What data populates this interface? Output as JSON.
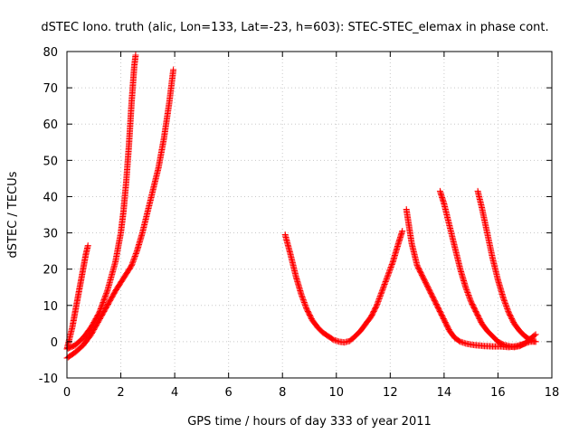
{
  "chart_data": {
    "type": "scatter",
    "title": "dSTEC Iono. truth (alic, Lon=133, Lat=-23, h=603): STEC-STEC_elemax in phase cont.",
    "xlabel": "GPS time / hours of day 333 of year 2011",
    "ylabel": "dSTEC  / TECUs",
    "xlim": [
      0,
      18
    ],
    "ylim": [
      -10,
      80
    ],
    "xticks": [
      0,
      2,
      4,
      6,
      8,
      10,
      12,
      14,
      16,
      18
    ],
    "yticks": [
      -10,
      0,
      10,
      20,
      30,
      40,
      50,
      60,
      70,
      80
    ],
    "xtick_labels": [
      "0",
      "2",
      "4",
      "6",
      "8",
      "10",
      "12",
      "14",
      "16",
      "18"
    ],
    "ytick_labels": [
      "-10",
      "0",
      "10",
      "20",
      "30",
      "40",
      "50",
      "60",
      "70",
      "80"
    ],
    "grid": true,
    "marker": "+",
    "marker_color": "#ff0000",
    "series": [
      {
        "points": [
          [
            0.0,
            -2
          ],
          [
            0.1,
            1
          ],
          [
            0.2,
            4
          ],
          [
            0.3,
            8
          ],
          [
            0.4,
            12
          ],
          [
            0.5,
            16
          ],
          [
            0.6,
            20
          ],
          [
            0.7,
            24
          ],
          [
            0.78,
            26.5
          ]
        ]
      },
      {
        "points": [
          [
            0.0,
            -2
          ],
          [
            0.3,
            -1
          ],
          [
            0.6,
            1
          ],
          [
            0.9,
            4
          ],
          [
            1.2,
            8
          ],
          [
            1.5,
            14
          ],
          [
            1.8,
            22
          ],
          [
            2.0,
            30
          ],
          [
            2.1,
            36
          ],
          [
            2.2,
            44
          ],
          [
            2.3,
            54
          ],
          [
            2.4,
            66
          ],
          [
            2.5,
            76
          ],
          [
            2.55,
            79
          ]
        ]
      },
      {
        "points": [
          [
            0.0,
            -4.5
          ],
          [
            0.3,
            -3
          ],
          [
            0.6,
            -1
          ],
          [
            0.9,
            2
          ],
          [
            1.2,
            6
          ],
          [
            1.5,
            10
          ],
          [
            1.8,
            14
          ],
          [
            2.1,
            17.5
          ],
          [
            2.4,
            21
          ],
          [
            2.6,
            25
          ],
          [
            2.8,
            30
          ],
          [
            3.0,
            36
          ],
          [
            3.2,
            42
          ],
          [
            3.4,
            48
          ],
          [
            3.6,
            56
          ],
          [
            3.8,
            66
          ],
          [
            3.95,
            75
          ]
        ]
      },
      {
        "points": [
          [
            8.1,
            29.5
          ],
          [
            8.3,
            24
          ],
          [
            8.5,
            18
          ],
          [
            8.7,
            13
          ],
          [
            8.9,
            9
          ],
          [
            9.1,
            6
          ],
          [
            9.3,
            4
          ],
          [
            9.5,
            2.5
          ],
          [
            9.7,
            1.5
          ],
          [
            9.9,
            0.5
          ],
          [
            10.1,
            0
          ],
          [
            10.3,
            -0.2
          ],
          [
            10.5,
            0.2
          ],
          [
            10.7,
            1.5
          ],
          [
            10.9,
            3
          ],
          [
            11.1,
            5
          ],
          [
            11.3,
            7
          ],
          [
            11.5,
            10
          ],
          [
            11.7,
            14
          ],
          [
            11.9,
            18
          ],
          [
            12.1,
            22
          ],
          [
            12.3,
            27
          ],
          [
            12.45,
            30.5
          ]
        ]
      },
      {
        "points": [
          [
            12.6,
            36.5
          ],
          [
            12.8,
            27
          ],
          [
            13.0,
            21
          ],
          [
            13.2,
            18
          ],
          [
            13.4,
            15
          ],
          [
            13.6,
            12
          ],
          [
            13.8,
            9
          ],
          [
            14.0,
            6
          ],
          [
            14.2,
            3
          ],
          [
            14.4,
            1
          ],
          [
            14.6,
            0
          ],
          [
            14.8,
            -0.5
          ],
          [
            15.0,
            -0.8
          ],
          [
            15.2,
            -1
          ],
          [
            15.5,
            -1.2
          ],
          [
            15.8,
            -1.3
          ],
          [
            16.1,
            -1.3
          ],
          [
            16.4,
            -1.5
          ],
          [
            16.7,
            -1.2
          ],
          [
            17.0,
            -0.5
          ],
          [
            17.2,
            0
          ],
          [
            17.4,
            0
          ]
        ]
      },
      {
        "points": [
          [
            13.85,
            41.5
          ],
          [
            14.0,
            38
          ],
          [
            14.2,
            32
          ],
          [
            14.4,
            26
          ],
          [
            14.6,
            20
          ],
          [
            14.8,
            15
          ],
          [
            15.0,
            11
          ],
          [
            15.2,
            8
          ],
          [
            15.4,
            5
          ],
          [
            15.6,
            3
          ],
          [
            15.8,
            1.5
          ],
          [
            16.0,
            0
          ],
          [
            16.2,
            -0.8
          ],
          [
            16.4,
            -1.2
          ],
          [
            16.6,
            -1.5
          ],
          [
            16.8,
            -1.2
          ],
          [
            17.0,
            -0.5
          ],
          [
            17.2,
            0.8
          ],
          [
            17.4,
            2
          ]
        ]
      },
      {
        "points": [
          [
            15.25,
            41.5
          ],
          [
            15.4,
            37
          ],
          [
            15.6,
            30
          ],
          [
            15.8,
            23
          ],
          [
            16.0,
            17
          ],
          [
            16.2,
            12
          ],
          [
            16.4,
            8
          ],
          [
            16.6,
            5
          ],
          [
            16.8,
            3
          ],
          [
            17.0,
            1.5
          ],
          [
            17.2,
            0.5
          ],
          [
            17.4,
            0
          ]
        ]
      }
    ]
  }
}
